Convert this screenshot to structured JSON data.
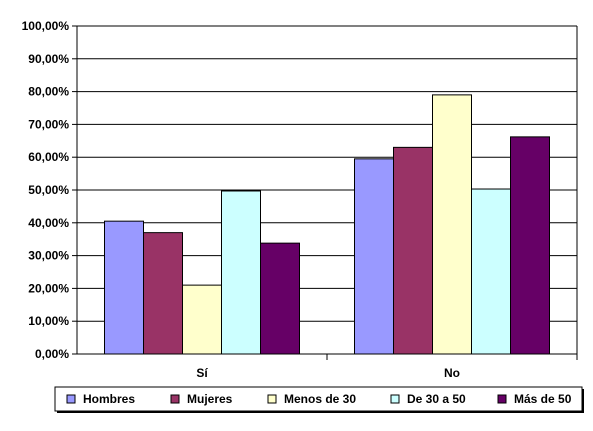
{
  "chart_data": {
    "type": "bar",
    "categories": [
      "Sí",
      "No"
    ],
    "series": [
      {
        "name": "Hombres",
        "color": "#9999ff",
        "values": [
          40.5,
          59.5
        ]
      },
      {
        "name": "Mujeres",
        "color": "#993366",
        "values": [
          37.0,
          63.0
        ]
      },
      {
        "name": "Menos de 30",
        "color": "#ffffcc",
        "values": [
          21.0,
          79.0
        ]
      },
      {
        "name": "De 30 a 50",
        "color": "#ccffff",
        "values": [
          49.7,
          50.3
        ]
      },
      {
        "name": "Más de 50",
        "color": "#660066",
        "values": [
          33.8,
          66.2
        ]
      }
    ],
    "y_ticks": [
      "0,00%",
      "10,00%",
      "20,00%",
      "30,00%",
      "40,00%",
      "50,00%",
      "60,00%",
      "70,00%",
      "80,00%",
      "90,00%",
      "100,00%"
    ],
    "ylim": [
      0,
      100
    ],
    "grid": true,
    "legend_position": "bottom",
    "title": "",
    "xlabel": "",
    "ylabel": ""
  }
}
